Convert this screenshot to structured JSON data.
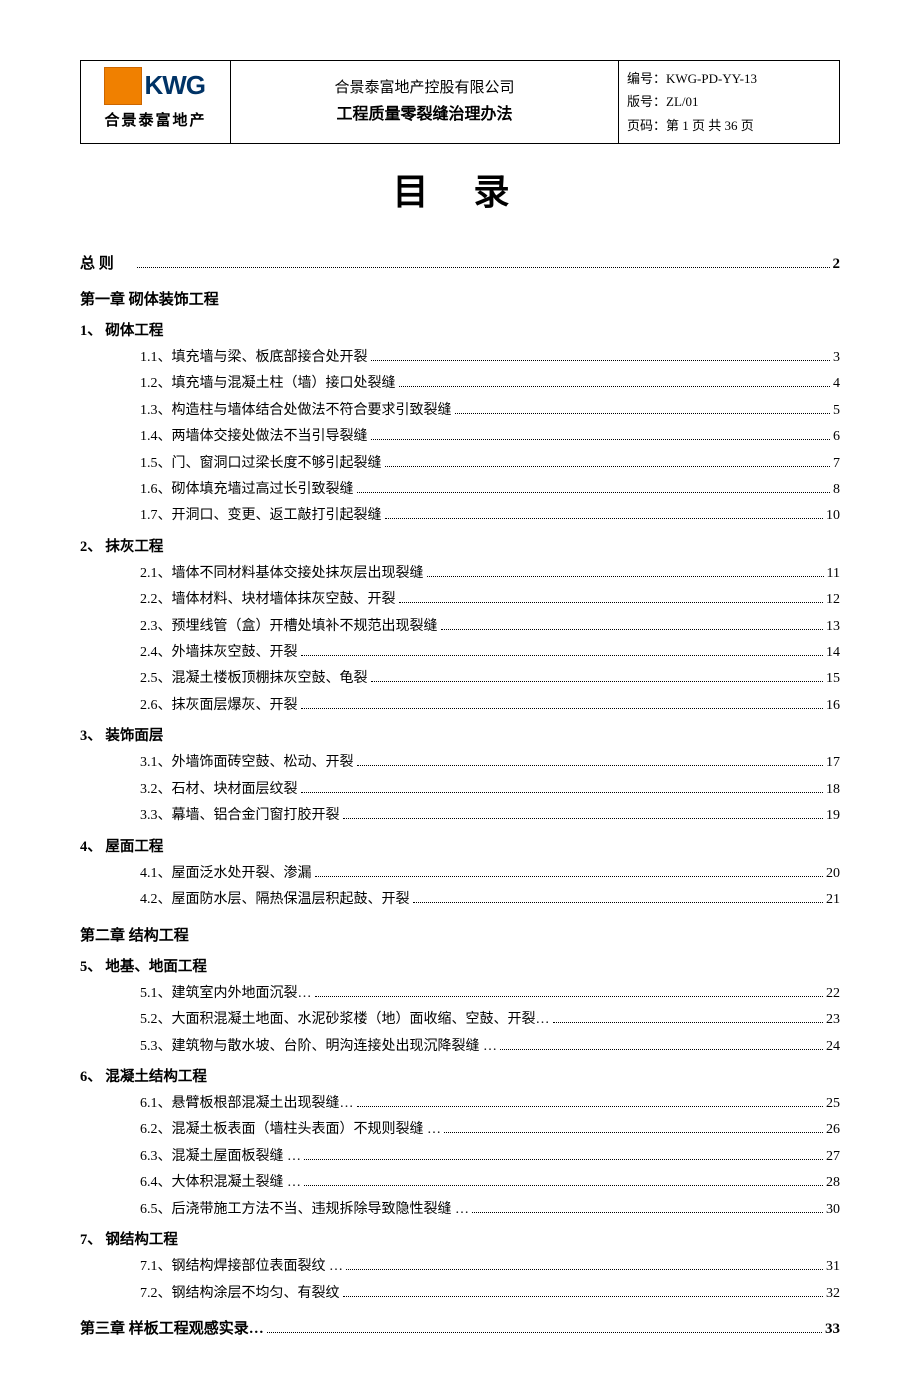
{
  "header": {
    "logo_text": "KWG",
    "logo_cn": "合景泰富地产",
    "company": "合景泰富地产控股有限公司",
    "doc_title": "工程质量零裂缝治理办法",
    "code_label": "编号：",
    "code": "KWG-PD-YY-13",
    "version_label": "版号：",
    "version": "ZL/01",
    "page_label": "页码：",
    "page": "第 1 页 共 36 页"
  },
  "page_title": "目  录",
  "general": {
    "label": "总  则",
    "page": "2"
  },
  "chapter1": "第一章  砌体装饰工程",
  "sec1": {
    "head": "1、 砌体工程",
    "items": [
      {
        "t": "1.1、填充墙与梁、板底部接合处开裂",
        "p": "3"
      },
      {
        "t": "1.2、填充墙与混凝土柱（墙）接口处裂缝",
        "p": "4"
      },
      {
        "t": "1.3、构造柱与墙体结合处做法不符合要求引致裂缝",
        "p": "5"
      },
      {
        "t": "1.4、两墙体交接处做法不当引导裂缝",
        "p": "6"
      },
      {
        "t": "1.5、门、窗洞口过梁长度不够引起裂缝",
        "p": "7"
      },
      {
        "t": "1.6、砌体填充墙过高过长引致裂缝",
        "p": "8"
      },
      {
        "t": "1.7、开洞口、变更、返工敲打引起裂缝",
        "p": "10"
      }
    ]
  },
  "sec2": {
    "head": "2、 抹灰工程",
    "items": [
      {
        "t": "2.1、墙体不同材料基体交接处抹灰层出现裂缝",
        "p": "11"
      },
      {
        "t": "2.2、墙体材料、块材墙体抹灰空鼓、开裂",
        "p": "12"
      },
      {
        "t": "2.3、预埋线管（盒）开槽处填补不规范出现裂缝",
        "p": "13"
      },
      {
        "t": "2.4、外墙抹灰空鼓、开裂",
        "p": "14"
      },
      {
        "t": "2.5、混凝土楼板顶棚抹灰空鼓、龟裂",
        "p": "15"
      },
      {
        "t": "2.6、抹灰面层爆灰、开裂",
        "p": "16"
      }
    ]
  },
  "sec3": {
    "head": "3、 装饰面层",
    "items": [
      {
        "t": "3.1、外墙饰面砖空鼓、松动、开裂",
        "p": "17"
      },
      {
        "t": "3.2、石材、块材面层纹裂",
        "p": "18"
      },
      {
        "t": "3.3、幕墙、铝合金门窗打胶开裂",
        "p": "19"
      }
    ]
  },
  "sec4": {
    "head": "4、 屋面工程",
    "items": [
      {
        "t": "4.1、屋面泛水处开裂、渗漏",
        "p": "20"
      },
      {
        "t": "4.2、屋面防水层、隔热保温层积起鼓、开裂",
        "p": "21"
      }
    ]
  },
  "chapter2": "第二章  结构工程",
  "sec5": {
    "head": "5、 地基、地面工程",
    "items": [
      {
        "t": "5.1、建筑室内外地面沉裂…",
        "p": "22"
      },
      {
        "t": "5.2、大面积混凝土地面、水泥砂浆楼（地）面收缩、空鼓、开裂…",
        "p": "23"
      },
      {
        "t": "5.3、建筑物与散水坡、台阶、明沟连接处出现沉降裂缝 …",
        "p": "24"
      }
    ]
  },
  "sec6": {
    "head": "6、 混凝土结构工程",
    "items": [
      {
        "t": "6.1、悬臂板根部混凝土出现裂缝…",
        "p": "25"
      },
      {
        "t": "6.2、混凝土板表面（墙柱头表面）不规则裂缝 …",
        "p": "26"
      },
      {
        "t": "6.3、混凝土屋面板裂缝 …",
        "p": "27"
      },
      {
        "t": "6.4、大体积混凝土裂缝 …",
        "p": "28"
      },
      {
        "t": "6.5、后浇带施工方法不当、违规拆除导致隐性裂缝 …",
        "p": "30"
      }
    ]
  },
  "sec7": {
    "head": "7、 钢结构工程",
    "items": [
      {
        "t": "7.1、钢结构焊接部位表面裂纹 …",
        "p": "31"
      },
      {
        "t": "7.2、钢结构涂层不均匀、有裂纹",
        "p": "32"
      }
    ]
  },
  "chapter3": {
    "label": "第三章  样板工程观感实录…",
    "page": "33"
  }
}
